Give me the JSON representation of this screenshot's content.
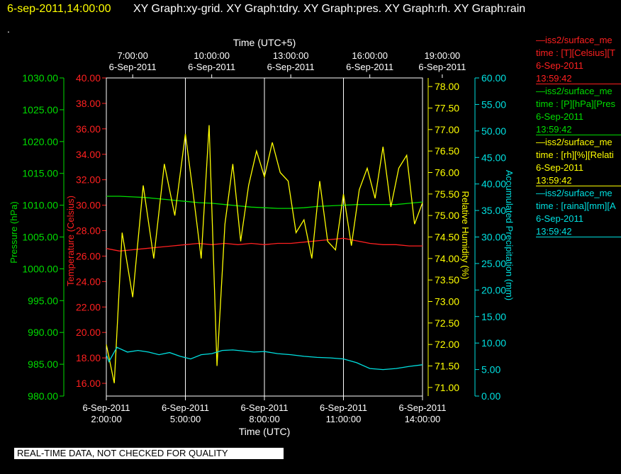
{
  "header": {
    "date_time": "6-sep-2011,14:00:00",
    "graphs": "XY Graph:xy-grid.  XY Graph:tdry.  XY Graph:pres.  XY Graph:rh.  XY Graph:rain"
  },
  "dot": ".",
  "notice": "REAL-TIME DATA, NOT CHECKED FOR QUALITY",
  "legend": [
    {
      "title": "—iss2/surface_me",
      "line2": "time : [T][Celsius][T",
      "date": "6-Sep-2011",
      "time": "13:59:42"
    },
    {
      "title": "—iss2/surface_me",
      "line2": "time : [P][hPa][Pres",
      "date": "6-Sep-2011",
      "time": "13:59:42"
    },
    {
      "title": "—iss2/surface_me",
      "line2": "time : [rh][%][Relati",
      "date": "6-Sep-2011",
      "time": "13:59:42"
    },
    {
      "title": "—iss2/surface_me",
      "line2": "time : [raina][mm][A",
      "date": "6-Sep-2011",
      "time": "13:59:42"
    }
  ],
  "colors": {
    "temperature": "#ff2020",
    "pressure": "#00dd00",
    "humidity": "#ffff00",
    "precip": "#00e0e0",
    "grid": "#ffffff"
  },
  "chart_data": {
    "type": "line",
    "x_bottom": {
      "label": "Time (UTC)",
      "ticks": [
        {
          "d": "6-Sep-2011",
          "t": "2:00:00",
          "h": 2
        },
        {
          "d": "6-Sep-2011",
          "t": "5:00:00",
          "h": 5
        },
        {
          "d": "6-Sep-2011",
          "t": "8:00:00",
          "h": 8
        },
        {
          "d": "6-Sep-2011",
          "t": "11:00:00",
          "h": 11
        },
        {
          "d": "6-Sep-2011",
          "t": "14:00:00",
          "h": 14
        }
      ],
      "range": [
        2,
        14
      ]
    },
    "x_top": {
      "label": "Time (UTC+5)",
      "ticks": [
        {
          "t": "7:00:00",
          "d": "6-Sep-2011",
          "h": 3
        },
        {
          "t": "10:00:00",
          "d": "6-Sep-2011",
          "h": 6
        },
        {
          "t": "13:00:00",
          "d": "6-Sep-2011",
          "h": 9
        },
        {
          "t": "16:00:00",
          "d": "6-Sep-2011",
          "h": 12
        },
        {
          "t": "19:00:00",
          "d": "6-Sep-2011",
          "h": 14.75
        }
      ]
    },
    "axes": {
      "pressure": {
        "label": "Pressure (hPa)",
        "range": [
          980,
          1030
        ],
        "ticks": [
          "980.00",
          "985.00",
          "990.00",
          "995.00",
          "1000.00",
          "1005.00",
          "1010.00",
          "1015.00",
          "1020.00",
          "1025.00",
          "1030.00"
        ]
      },
      "temperature": {
        "label": "Temperature (Celsius)",
        "range": [
          15,
          40
        ],
        "ticks": [
          "16.00",
          "18.00",
          "20.00",
          "22.00",
          "24.00",
          "26.00",
          "28.00",
          "30.00",
          "32.00",
          "34.00",
          "36.00",
          "38.00",
          "40.00"
        ]
      },
      "humidity": {
        "label": "Relative Humidity (%)",
        "range": [
          70.8,
          78.2
        ],
        "ticks": [
          "71.00",
          "71.50",
          "72.00",
          "72.50",
          "73.00",
          "73.50",
          "74.00",
          "74.50",
          "75.00",
          "75.50",
          "76.00",
          "76.50",
          "77.00",
          "77.50",
          "78.00"
        ]
      },
      "precip": {
        "label": "Accumulated Precipitation (mm)",
        "range": [
          0,
          60
        ],
        "ticks": [
          "0.00",
          "5.00",
          "10.00",
          "15.00",
          "20.00",
          "25.00",
          "30.00",
          "35.00",
          "40.00",
          "45.00",
          "50.00",
          "55.00",
          "60.00"
        ]
      }
    },
    "series": [
      {
        "name": "Temperature",
        "axis": "temperature",
        "x": [
          2,
          2.5,
          3,
          3.5,
          4,
          4.5,
          5,
          5.5,
          6,
          6.5,
          7,
          7.5,
          8,
          8.5,
          9,
          9.5,
          10,
          10.5,
          11,
          11.5,
          12,
          12.5,
          13,
          13.5,
          14
        ],
        "values": [
          26.6,
          26.4,
          26.5,
          26.6,
          26.7,
          26.8,
          26.9,
          27.0,
          26.9,
          27.0,
          26.9,
          27.0,
          26.9,
          27.0,
          27.0,
          27.1,
          27.2,
          27.3,
          27.4,
          27.2,
          27.0,
          26.9,
          26.9,
          26.8,
          26.8
        ]
      },
      {
        "name": "Pressure",
        "axis": "pressure",
        "x": [
          2,
          2.5,
          3,
          3.5,
          4,
          4.5,
          5,
          5.5,
          6,
          6.5,
          7,
          7.5,
          8,
          8.5,
          9,
          9.5,
          10,
          10.5,
          11,
          11.5,
          12,
          12.5,
          13,
          13.5,
          14
        ],
        "values": [
          1011.4,
          1011.4,
          1011.3,
          1011.2,
          1011.0,
          1010.8,
          1010.6,
          1010.4,
          1010.3,
          1010.1,
          1009.9,
          1009.7,
          1009.6,
          1009.5,
          1009.5,
          1009.6,
          1009.8,
          1009.9,
          1010.0,
          1010.1,
          1010.1,
          1010.1,
          1010.1,
          1010.3,
          1010.5
        ]
      },
      {
        "name": "Humidity",
        "axis": "humidity",
        "x": [
          2,
          2.3,
          2.6,
          3,
          3.4,
          3.8,
          4.2,
          4.6,
          5,
          5.3,
          5.6,
          5.9,
          6.2,
          6.5,
          6.8,
          7.1,
          7.4,
          7.7,
          8,
          8.3,
          8.6,
          8.9,
          9.2,
          9.5,
          9.8,
          10.1,
          10.4,
          10.7,
          11,
          11.3,
          11.6,
          11.9,
          12.2,
          12.5,
          12.8,
          13.1,
          13.4,
          13.7,
          14
        ],
        "values": [
          72.0,
          71.1,
          74.6,
          73.1,
          75.7,
          74.0,
          76.2,
          75.0,
          76.9,
          75.5,
          74.0,
          77.1,
          71.5,
          74.8,
          76.2,
          74.4,
          75.7,
          76.5,
          75.9,
          76.7,
          76.0,
          75.8,
          74.6,
          74.9,
          74.0,
          75.8,
          74.4,
          74.2,
          75.5,
          74.3,
          75.6,
          76.1,
          75.4,
          76.6,
          75.2,
          76.1,
          76.4,
          74.8,
          75.3
        ]
      },
      {
        "name": "Precipitation",
        "axis": "precip",
        "x": [
          2,
          2.1,
          2.4,
          2.8,
          3.2,
          3.6,
          4,
          4.4,
          4.8,
          5.2,
          5.6,
          6,
          6.4,
          6.8,
          7.2,
          7.6,
          8,
          8.5,
          9,
          9.5,
          10,
          10.5,
          11,
          11.5,
          12,
          12.5,
          13,
          13.5,
          14
        ],
        "values": [
          7.8,
          6.5,
          9.2,
          8.3,
          8.6,
          8.3,
          7.8,
          8.2,
          7.5,
          7.0,
          7.8,
          8.0,
          8.6,
          8.7,
          8.5,
          8.3,
          8.4,
          8.0,
          7.8,
          7.5,
          7.3,
          7.2,
          7.0,
          6.3,
          5.2,
          5.0,
          5.2,
          5.6,
          5.9
        ]
      }
    ]
  }
}
